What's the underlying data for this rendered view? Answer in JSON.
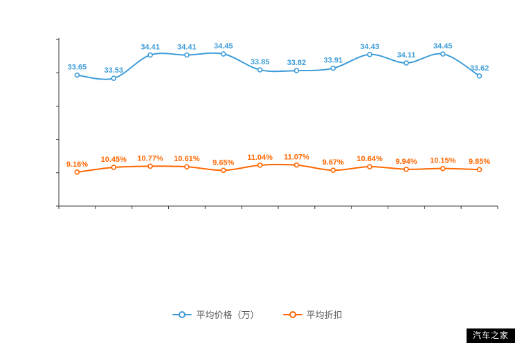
{
  "chart_data": {
    "type": "line",
    "x": [
      1,
      2,
      3,
      4,
      5,
      6,
      7,
      8,
      9,
      10,
      11,
      12
    ],
    "x_tick_labels_visible": false,
    "y_tick_labels_visible": false,
    "grid": false,
    "axis_color": "#333333",
    "legend_position": "bottom",
    "series": [
      {
        "name": "平均价格（万）",
        "color": "#3d9cd8",
        "values": [
          33.65,
          33.53,
          34.41,
          34.41,
          34.45,
          33.85,
          33.82,
          33.91,
          34.43,
          34.11,
          34.45,
          33.62
        ],
        "labels": [
          "33.65",
          "33.53",
          "34.41",
          "34.41",
          "34.45",
          "33.85",
          "33.82",
          "33.91",
          "34.43",
          "34.11",
          "34.45",
          "33.62"
        ],
        "ylim": [
          28.7,
          35.0
        ]
      },
      {
        "name": "平均折扣",
        "color": "#ff6600",
        "values": [
          9.16,
          10.45,
          10.77,
          10.61,
          9.65,
          11.04,
          11.07,
          9.67,
          10.64,
          9.94,
          10.15,
          9.85
        ],
        "labels": [
          "9.16%",
          "10.45%",
          "10.77%",
          "10.61%",
          "9.65%",
          "11.04%",
          "11.07%",
          "9.67%",
          "10.64%",
          "9.94%",
          "10.15%",
          "9.85%"
        ],
        "ylim": [
          0,
          45
        ]
      }
    ]
  },
  "legend": {
    "items": [
      {
        "label": "平均价格（万）"
      },
      {
        "label": "平均折扣"
      }
    ]
  },
  "watermark": {
    "text": "汽车之家",
    "bg": "#000000",
    "fg": "#ffffff"
  }
}
